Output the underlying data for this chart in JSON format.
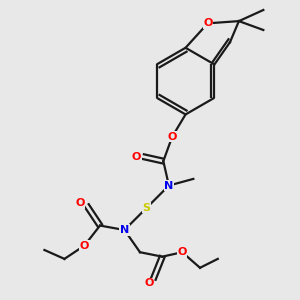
{
  "background_color": "#e8e8e8",
  "bond_color": "#1a1a1a",
  "atom_colors": {
    "O": "#ff0000",
    "N": "#0000ee",
    "S": "#cccc00",
    "C": "#1a1a1a"
  },
  "figsize": [
    3.0,
    3.0
  ],
  "dpi": 100
}
